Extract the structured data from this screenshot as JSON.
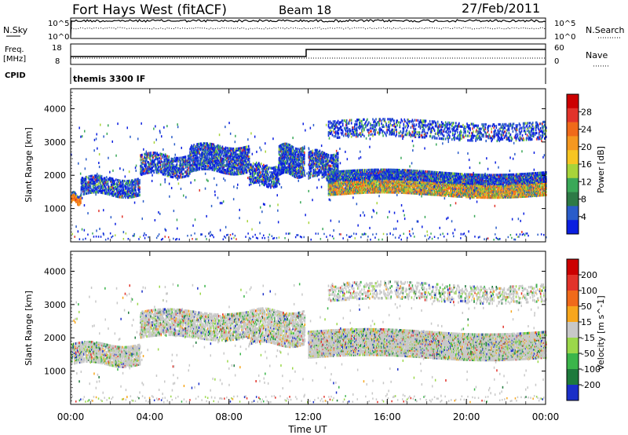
{
  "header": {
    "title": "Fort Hays West (fitACF)",
    "beam": "Beam 18",
    "date": "27/Feb/2011"
  },
  "top_panels": {
    "nsky_label": "N.Sky",
    "nsearch_label": "N.Search",
    "freq_label": "Freq.",
    "freq_unit": "[MHz]",
    "nave_label": "Nave",
    "cpid_label": "CPID",
    "cpid_value": "themis 3300 IF",
    "noise_ticks_left": [
      "10^5",
      "10^0"
    ],
    "noise_ticks_right": [
      "10^5",
      "10^0"
    ],
    "freq_ticks": [
      "18",
      "8"
    ],
    "nave_ticks": [
      "60",
      "0"
    ]
  },
  "chart_data": [
    {
      "type": "heatmap",
      "name": "power",
      "ylabel": "Slant Range [km]",
      "ylim": [
        0,
        4600
      ],
      "yticks": [
        1000,
        2000,
        3000,
        4000
      ],
      "x_range_hours": [
        0,
        24
      ],
      "colorbar_label": "Power [dB]",
      "colorbar_ticks": [
        "28",
        "24",
        "20",
        "16",
        "12",
        "8",
        "4"
      ],
      "colorbar_colors": [
        "#0a1ee0",
        "#2a5cc9",
        "#2d7a46",
        "#3aa858",
        "#a7d43a",
        "#f7c522",
        "#f59820",
        "#f06a1a",
        "#e2332a",
        "#cc0000"
      ],
      "bands": [
        {
          "t0": 0.0,
          "t1": 0.5,
          "r0": 1180,
          "r1": 1420,
          "density": 0.9
        },
        {
          "t0": 0.5,
          "t1": 3.5,
          "r0": 1400,
          "r1": 1900,
          "density": 0.6
        },
        {
          "t0": 3.5,
          "t1": 6.0,
          "r0": 2000,
          "r1": 2600,
          "density": 0.55
        },
        {
          "t0": 6.0,
          "t1": 9.0,
          "r0": 2100,
          "r1": 2900,
          "density": 0.65
        },
        {
          "t0": 9.0,
          "t1": 10.5,
          "r0": 1700,
          "r1": 2300,
          "density": 0.55
        },
        {
          "t0": 10.5,
          "t1": 11.8,
          "r0": 2000,
          "r1": 2900,
          "density": 0.7
        },
        {
          "t0": 12.0,
          "t1": 13.5,
          "r0": 1900,
          "r1": 2700,
          "density": 0.6
        },
        {
          "t0": 13.0,
          "t1": 24.0,
          "r0": 1400,
          "r1": 2100,
          "density": 0.85
        },
        {
          "t0": 13.0,
          "t1": 24.0,
          "r0": 3100,
          "r1": 3600,
          "density": 0.3
        }
      ]
    },
    {
      "type": "heatmap",
      "name": "velocity",
      "ylabel": "Slant Range [km]",
      "ylim": [
        0,
        4600
      ],
      "yticks": [
        1000,
        2000,
        3000,
        4000
      ],
      "x_range_hours": [
        0,
        24
      ],
      "xticks": [
        "00:00",
        "04:00",
        "08:00",
        "12:00",
        "16:00",
        "20:00",
        "00:00"
      ],
      "xlabel": "Time UT",
      "colorbar_label": "Velocity [m s^-1]",
      "colorbar_ticks": [
        "200",
        "100",
        "50",
        "15",
        "-15",
        "-50",
        "-100",
        "-200"
      ],
      "colorbar_colors": [
        "#1a2fc8",
        "#1e7a3c",
        "#3bb54a",
        "#9bd84a",
        "#c8c8c8",
        "#f7a61c",
        "#f06a1a",
        "#e2332a",
        "#cc0000"
      ],
      "bands": [
        {
          "t0": 0.0,
          "t1": 3.5,
          "r0": 1200,
          "r1": 1800,
          "density": 0.7
        },
        {
          "t0": 3.5,
          "t1": 9.0,
          "r0": 2000,
          "r1": 2800,
          "density": 0.6
        },
        {
          "t0": 9.0,
          "t1": 11.8,
          "r0": 1800,
          "r1": 2800,
          "density": 0.6
        },
        {
          "t0": 12.0,
          "t1": 24.0,
          "r0": 1400,
          "r1": 2200,
          "density": 0.85
        },
        {
          "t0": 13.0,
          "t1": 24.0,
          "r0": 3100,
          "r1": 3600,
          "density": 0.25
        }
      ]
    }
  ],
  "colors": {
    "noise_line": "#000000",
    "axis": "#000000",
    "ground_scatter": "#c8c8c8"
  }
}
